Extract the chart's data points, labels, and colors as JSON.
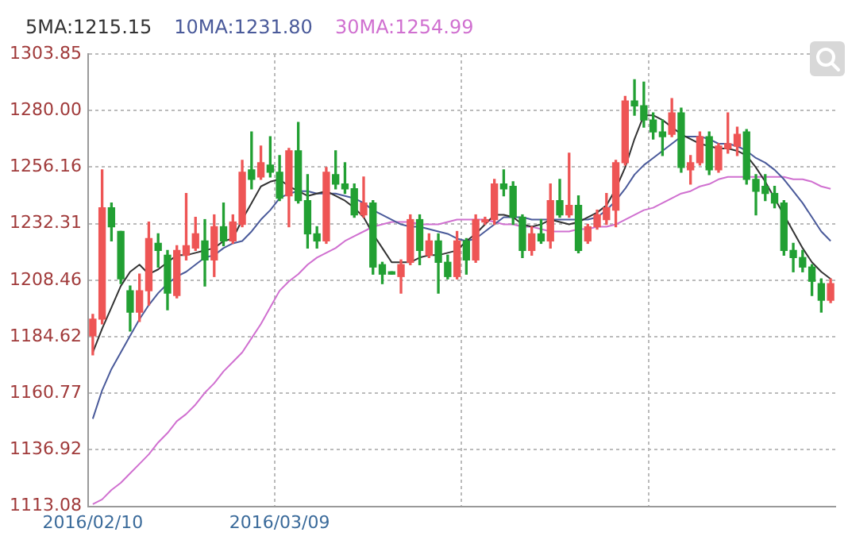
{
  "chart_data": {
    "type": "candlestick",
    "legend": "top left",
    "grid": true,
    "marker": "none",
    "categories": [
      "2016/02/10",
      null,
      null,
      null,
      null,
      null,
      null,
      null,
      null,
      null,
      null,
      null,
      null,
      null,
      null,
      null,
      null,
      null,
      null,
      null,
      "2016/03/09",
      null,
      null,
      null,
      null,
      null,
      null,
      null,
      null,
      null,
      null,
      null,
      null,
      null,
      null,
      null,
      null,
      null,
      null,
      null,
      null,
      null,
      null,
      null,
      null,
      null,
      null,
      null,
      null,
      null,
      null,
      null,
      null,
      null,
      null,
      null,
      null,
      null,
      null,
      null,
      null,
      null,
      null,
      null,
      null,
      null,
      null,
      null,
      null,
      null,
      null,
      null,
      null,
      null,
      null,
      null,
      null,
      null,
      null,
      null
    ],
    "ohlc": [
      [
        1185,
        1194,
        1177,
        1192
      ],
      [
        1192,
        1255,
        1190,
        1239
      ],
      [
        1239,
        1241,
        1225,
        1231
      ],
      [
        1229,
        1229,
        1207,
        1209
      ],
      [
        1204,
        1206,
        1187,
        1195
      ],
      [
        1195,
        1211,
        1191,
        1204
      ],
      [
        1204,
        1233,
        1198,
        1226
      ],
      [
        1224,
        1228,
        1214,
        1221
      ],
      [
        1219,
        1221,
        1196,
        1203
      ],
      [
        1202,
        1223,
        1201,
        1221
      ],
      [
        1219,
        1245,
        1217,
        1223
      ],
      [
        1222,
        1235,
        1221,
        1228
      ],
      [
        1225,
        1234,
        1206,
        1217
      ],
      [
        1217,
        1236,
        1210,
        1231
      ],
      [
        1231,
        1241,
        1223,
        1225
      ],
      [
        1225,
        1236,
        1224,
        1233
      ],
      [
        1232,
        1259,
        1231,
        1254
      ],
      [
        1255,
        1271,
        1247,
        1251
      ],
      [
        1252,
        1265,
        1251,
        1258
      ],
      [
        1257,
        1269,
        1252,
        1254
      ],
      [
        1254,
        1261,
        1242,
        1243
      ],
      [
        1244,
        1264,
        1231,
        1263
      ],
      [
        1263,
        1275,
        1241,
        1242
      ],
      [
        1242,
        1253,
        1222,
        1228
      ],
      [
        1228,
        1231,
        1222,
        1225
      ],
      [
        1225,
        1256,
        1224,
        1254
      ],
      [
        1253,
        1263,
        1247,
        1249
      ],
      [
        1249,
        1258,
        1245,
        1247
      ],
      [
        1247,
        1249,
        1235,
        1236
      ],
      [
        1236,
        1252,
        1235,
        1241
      ],
      [
        1241,
        1242,
        1211,
        1214
      ],
      [
        1215,
        1216,
        1207,
        1211
      ],
      [
        1212,
        1212,
        1211,
        1211
      ],
      [
        1210,
        1217,
        1203,
        1215
      ],
      [
        1216,
        1236,
        1215,
        1234
      ],
      [
        1234,
        1236,
        1215,
        1221
      ],
      [
        1219,
        1228,
        1218,
        1225
      ],
      [
        1225,
        1228,
        1203,
        1216
      ],
      [
        1216,
        1219,
        1209,
        1210
      ],
      [
        1210,
        1229,
        1209,
        1225
      ],
      [
        1225,
        1226,
        1211,
        1217
      ],
      [
        1217,
        1236,
        1216,
        1234
      ],
      [
        1233,
        1235,
        1232,
        1234
      ],
      [
        1234,
        1251,
        1232,
        1249
      ],
      [
        1249,
        1255,
        1244,
        1247
      ],
      [
        1248,
        1250,
        1232,
        1235
      ],
      [
        1235,
        1236,
        1218,
        1221
      ],
      [
        1221,
        1231,
        1219,
        1228
      ],
      [
        1228,
        1234,
        1224,
        1225
      ],
      [
        1225,
        1249,
        1222,
        1242
      ],
      [
        1242,
        1251,
        1235,
        1236
      ],
      [
        1236,
        1262,
        1235,
        1240
      ],
      [
        1240,
        1244,
        1220,
        1221
      ],
      [
        1225,
        1232,
        1224,
        1231
      ],
      [
        1231,
        1238,
        1230,
        1236
      ],
      [
        1234,
        1245,
        1232,
        1239
      ],
      [
        1238,
        1259,
        1231,
        1258
      ],
      [
        1258,
        1286,
        1257,
        1284
      ],
      [
        1284,
        1293,
        1278,
        1282
      ],
      [
        1282,
        1292,
        1273,
        1276
      ],
      [
        1276,
        1279,
        1268,
        1271
      ],
      [
        1271,
        1276,
        1261,
        1269
      ],
      [
        1270,
        1285,
        1269,
        1279
      ],
      [
        1279,
        1281,
        1254,
        1256
      ],
      [
        1255,
        1261,
        1249,
        1258
      ],
      [
        1258,
        1271,
        1257,
        1269
      ],
      [
        1269,
        1271,
        1253,
        1255
      ],
      [
        1255,
        1266,
        1254,
        1265
      ],
      [
        1264,
        1279,
        1262,
        1266
      ],
      [
        1265,
        1273,
        1261,
        1270
      ],
      [
        1271,
        1272,
        1249,
        1251
      ],
      [
        1251,
        1253,
        1236,
        1246
      ],
      [
        1248,
        1253,
        1242,
        1245
      ],
      [
        1245,
        1248,
        1239,
        1241
      ],
      [
        1241,
        1242,
        1219,
        1221
      ],
      [
        1221,
        1224,
        1212,
        1218
      ],
      [
        1218,
        1221,
        1212,
        1214
      ],
      [
        1214,
        1215,
        1202,
        1208
      ],
      [
        1207,
        1209,
        1195,
        1200
      ],
      [
        1200,
        1209,
        1199,
        1207
      ]
    ],
    "colors": [
      "#ee5555",
      "#ee5555",
      "#22a033",
      "#22a033",
      "#22a033",
      "#ee5555",
      "#ee5555",
      "#22a033",
      "#22a033",
      "#ee5555",
      "#ee5555",
      "#ee5555",
      "#22a033",
      "#ee5555",
      "#22a033",
      "#ee5555",
      "#ee5555",
      "#22a033",
      "#ee5555",
      "#22a033",
      "#22a033",
      "#ee5555",
      "#22a033",
      "#22a033",
      "#22a033",
      "#ee5555",
      "#22a033",
      "#22a033",
      "#22a033",
      "#ee5555",
      "#22a033",
      "#22a033",
      "#22a033",
      "#ee5555",
      "#ee5555",
      "#22a033",
      "#ee5555",
      "#22a033",
      "#22a033",
      "#ee5555",
      "#22a033",
      "#ee5555",
      "#ee5555",
      "#ee5555",
      "#22a033",
      "#22a033",
      "#22a033",
      "#ee5555",
      "#22a033",
      "#ee5555",
      "#22a033",
      "#ee5555",
      "#22a033",
      "#ee5555",
      "#ee5555",
      "#ee5555",
      "#ee5555",
      "#ee5555",
      "#22a033",
      "#22a033",
      "#22a033",
      "#22a033",
      "#ee5555",
      "#22a033",
      "#ee5555",
      "#ee5555",
      "#22a033",
      "#ee5555",
      "#ee5555",
      "#ee5555",
      "#22a033",
      "#22a033",
      "#22a033",
      "#22a033",
      "#22a033",
      "#22a033",
      "#22a033",
      "#22a033",
      "#22a033",
      "#ee5555"
    ],
    "series": [
      {
        "name": "5MA:1215.15",
        "type": "line",
        "color": "#333333",
        "values": [
          1178,
          1188,
          1197,
          1206,
          1212,
          1215,
          1211,
          1213,
          1216,
          1219,
          1219,
          1220,
          1221,
          1222,
          1225,
          1226,
          1234,
          1241,
          1248,
          1250,
          1251,
          1248,
          1246,
          1244,
          1245,
          1246,
          1244,
          1242,
          1239,
          1235,
          1228,
          1222,
          1216,
          1216,
          1216,
          1218,
          1219,
          1219,
          1220,
          1221,
          1225,
          1228,
          1232,
          1236,
          1236,
          1235,
          1232,
          1231,
          1232,
          1234,
          1233,
          1232,
          1233,
          1235,
          1237,
          1240,
          1247,
          1256,
          1268,
          1278,
          1278,
          1276,
          1273,
          1270,
          1268,
          1266,
          1265,
          1264,
          1264,
          1263,
          1261,
          1256,
          1250,
          1243,
          1236,
          1229,
          1222,
          1216,
          1212,
          1209
        ]
      },
      {
        "name": "10MA:1231.80",
        "type": "line",
        "color": "#4a5a9a",
        "values": [
          1150,
          1162,
          1171,
          1178,
          1185,
          1192,
          1198,
          1203,
          1207,
          1210,
          1212,
          1215,
          1218,
          1219,
          1222,
          1224,
          1225,
          1229,
          1234,
          1238,
          1243,
          1245,
          1246,
          1246,
          1245,
          1245,
          1245,
          1244,
          1243,
          1241,
          1238,
          1236,
          1234,
          1232,
          1231,
          1231,
          1230,
          1229,
          1228,
          1226,
          1225,
          1226,
          1229,
          1232,
          1235,
          1235,
          1235,
          1234,
          1234,
          1234,
          1234,
          1234,
          1234,
          1234,
          1235,
          1238,
          1242,
          1247,
          1253,
          1257,
          1260,
          1263,
          1266,
          1269,
          1269,
          1269,
          1268,
          1266,
          1266,
          1265,
          1263,
          1260,
          1258,
          1255,
          1251,
          1246,
          1241,
          1235,
          1229,
          1225
        ]
      },
      {
        "name": "30MA:1254.99",
        "type": "line",
        "color": "#d070d0",
        "values": [
          1114,
          1116,
          1120,
          1123,
          1127,
          1131,
          1135,
          1140,
          1144,
          1149,
          1152,
          1156,
          1161,
          1165,
          1170,
          1174,
          1178,
          1184,
          1190,
          1197,
          1204,
          1208,
          1211,
          1215,
          1218,
          1220,
          1222,
          1225,
          1227,
          1229,
          1231,
          1232,
          1233,
          1233,
          1233,
          1232,
          1232,
          1232,
          1233,
          1234,
          1234,
          1234,
          1234,
          1233,
          1232,
          1232,
          1231,
          1231,
          1230,
          1229,
          1229,
          1229,
          1230,
          1230,
          1231,
          1231,
          1232,
          1234,
          1236,
          1238,
          1239,
          1241,
          1243,
          1245,
          1246,
          1248,
          1249,
          1251,
          1252,
          1252,
          1252,
          1252,
          1252,
          1252,
          1252,
          1251,
          1251,
          1250,
          1248,
          1247
        ]
      }
    ],
    "ylim": [
      1113.08,
      1303.85
    ],
    "yticks": [
      1113.08,
      1136.92,
      1160.77,
      1184.62,
      1208.46,
      1232.31,
      1256.16,
      {
        "value": 1280,
        "label": "1280.00"
      },
      1303.85
    ]
  }
}
